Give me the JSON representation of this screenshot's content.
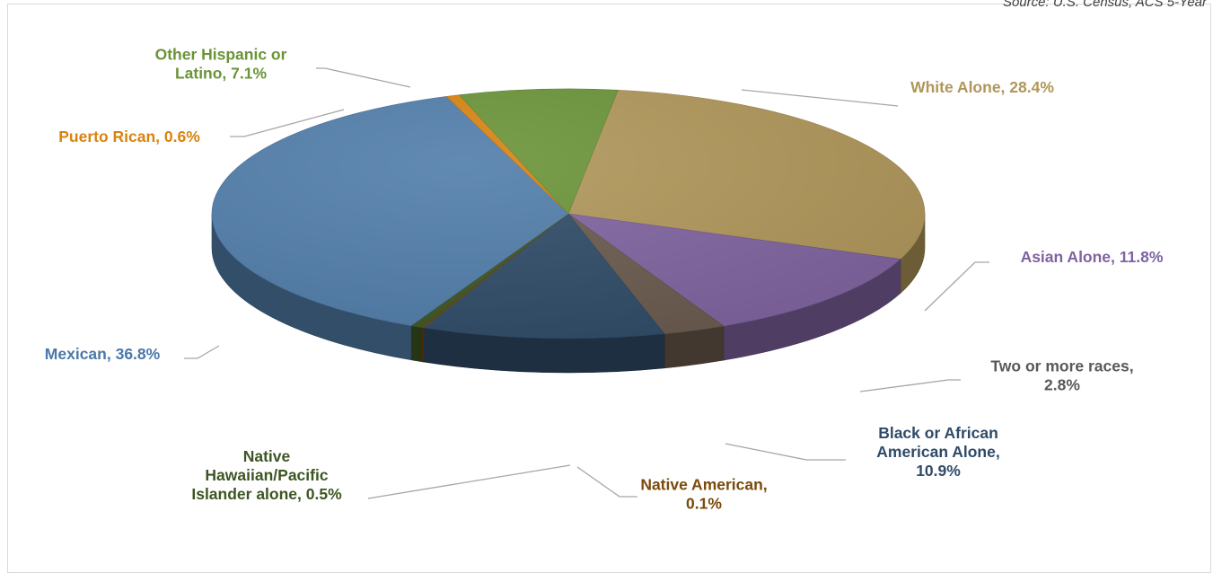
{
  "source_note": "Source: U.S. Census, ACS 5-Year",
  "chart_data": {
    "type": "pie",
    "title": "",
    "unit": "%",
    "slices": [
      {
        "label": "White Alone",
        "value": 28.4,
        "label_text": "White Alone, 28.4%",
        "color": "#B09659",
        "label_color": "#B09659"
      },
      {
        "label": "Asian Alone",
        "value": 11.8,
        "label_text": "Asian Alone, 11.8%",
        "color": "#7F63A0",
        "label_color": "#7F63A0"
      },
      {
        "label": "Two or more races",
        "value": 2.8,
        "label_lines": [
          "Two or more races,",
          "2.8%"
        ],
        "color": "#6A5A4E",
        "label_color": "#595959"
      },
      {
        "label": "Black or African American Alone",
        "value": 10.9,
        "label_lines": [
          "Black or African",
          "American Alone,",
          "10.9%"
        ],
        "color": "#2F4B68",
        "label_color": "#2F4B68"
      },
      {
        "label": "Native American",
        "value": 0.1,
        "label_lines": [
          "Native American,",
          "0.1%"
        ],
        "color": "#7A4A0A",
        "label_color": "#7A4A0A"
      },
      {
        "label": "Native Hawaiian/Pacific Islander alone",
        "value": 0.5,
        "label_lines": [
          "Native",
          "Hawaiian/Pacific",
          "Islander alone, 0.5%"
        ],
        "color": "#3D5522",
        "label_color": "#3D5522"
      },
      {
        "label": "Mexican",
        "value": 36.8,
        "label_text": "Mexican, 36.8%",
        "color": "#507DAA",
        "label_color": "#4A78A8"
      },
      {
        "label": "Puerto Rican",
        "value": 0.6,
        "label_text": "Puerto Rican, 0.6%",
        "color": "#D9830F",
        "label_color": "#D9830F"
      },
      {
        "label": "Other Hispanic or Latino",
        "value": 7.1,
        "label_lines": [
          "Other Hispanic or",
          "Latino, 7.1%"
        ],
        "color": "#6A9438",
        "label_color": "#6A9438"
      }
    ],
    "legend": "none",
    "data_labels": "outside with leader lines"
  }
}
